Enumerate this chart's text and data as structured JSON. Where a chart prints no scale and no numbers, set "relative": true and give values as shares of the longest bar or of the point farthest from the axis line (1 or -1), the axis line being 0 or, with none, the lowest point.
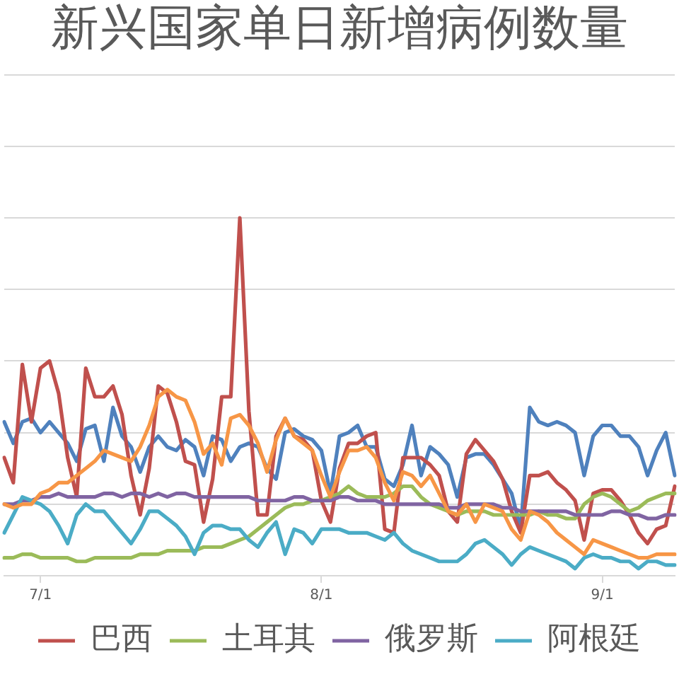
{
  "chart_data": {
    "type": "line",
    "title": "新兴国家单日新增病例数量",
    "relative": true,
    "grid": "y",
    "legend": "bottom",
    "categories": [
      null,
      null,
      null,
      null,
      "7/1",
      null,
      null,
      null,
      null,
      null,
      null,
      null,
      null,
      null,
      null,
      null,
      null,
      null,
      null,
      null,
      null,
      null,
      null,
      null,
      null,
      null,
      null,
      null,
      null,
      null,
      null,
      null,
      null,
      null,
      null,
      "8/1",
      null,
      null,
      null,
      null,
      null,
      null,
      null,
      null,
      null,
      null,
      null,
      null,
      null,
      null,
      null,
      null,
      null,
      null,
      null,
      null,
      null,
      null,
      null,
      null,
      null,
      null,
      null,
      null,
      null,
      null,
      "9/1",
      null,
      null,
      null,
      null,
      null,
      null,
      null,
      null
    ],
    "series": [
      {
        "color": "#4f81bd",
        "values": [
          0.43,
          0.37,
          0.43,
          0.44,
          0.4,
          0.43,
          0.4,
          0.37,
          0.32,
          0.41,
          0.42,
          0.32,
          0.47,
          0.39,
          0.36,
          0.29,
          0.36,
          0.39,
          0.36,
          0.35,
          0.38,
          0.36,
          0.28,
          0.39,
          0.38,
          0.32,
          0.36,
          0.37,
          0.36,
          0.3,
          0.27,
          0.4,
          0.41,
          0.39,
          0.38,
          0.35,
          0.23,
          0.39,
          0.4,
          0.42,
          0.36,
          0.36,
          0.27,
          0.25,
          0.31,
          0.42,
          0.28,
          0.36,
          0.34,
          0.31,
          0.22,
          0.33,
          0.34,
          0.34,
          0.31,
          0.27,
          0.23,
          0.13,
          0.47,
          0.43,
          0.42,
          0.43,
          0.42,
          0.4,
          0.28,
          0.39,
          0.42,
          0.42,
          0.39,
          0.39,
          0.36,
          0.28,
          0.35,
          0.4,
          0.28
        ]
      },
      {
        "name": "巴西",
        "color": "#c0504d",
        "values": [
          0.33,
          0.26,
          0.59,
          0.43,
          0.58,
          0.6,
          0.51,
          0.33,
          0.22,
          0.58,
          0.5,
          0.5,
          0.53,
          0.45,
          0.28,
          0.17,
          0.3,
          0.53,
          0.51,
          0.43,
          0.32,
          0.31,
          0.15,
          0.27,
          0.5,
          0.5,
          1.0,
          0.46,
          0.17,
          0.17,
          0.39,
          0.44,
          0.39,
          0.38,
          0.35,
          0.21,
          0.15,
          0.3,
          0.37,
          0.37,
          0.39,
          0.4,
          0.13,
          0.12,
          0.33,
          0.33,
          0.33,
          0.31,
          0.28,
          0.18,
          0.15,
          0.34,
          0.38,
          0.35,
          0.32,
          0.27,
          0.18,
          0.12,
          0.28,
          0.28,
          0.29,
          0.26,
          0.24,
          0.21,
          0.1,
          0.23,
          0.24,
          0.24,
          0.21,
          0.17,
          0.12,
          0.09,
          0.13,
          0.14,
          0.25
        ]
      },
      {
        "name": "土耳其",
        "color": "#9bbb59",
        "values": [
          0.05,
          0.05,
          0.06,
          0.06,
          0.05,
          0.05,
          0.05,
          0.05,
          0.04,
          0.04,
          0.05,
          0.05,
          0.05,
          0.05,
          0.05,
          0.06,
          0.06,
          0.06,
          0.07,
          0.07,
          0.07,
          0.07,
          0.08,
          0.08,
          0.08,
          0.09,
          0.1,
          0.11,
          0.13,
          0.15,
          0.17,
          0.19,
          0.2,
          0.2,
          0.21,
          0.21,
          0.22,
          0.23,
          0.25,
          0.23,
          0.22,
          0.22,
          0.22,
          0.23,
          0.25,
          0.25,
          0.22,
          0.2,
          0.19,
          0.18,
          0.17,
          0.18,
          0.18,
          0.18,
          0.17,
          0.17,
          0.17,
          0.17,
          0.17,
          0.18,
          0.17,
          0.17,
          0.16,
          0.16,
          0.2,
          0.22,
          0.23,
          0.22,
          0.2,
          0.18,
          0.19,
          0.21,
          0.22,
          0.23,
          0.23
        ]
      },
      {
        "name": "俄罗斯",
        "color": "#8064a2",
        "values": [
          0.2,
          0.2,
          0.21,
          0.21,
          0.22,
          0.22,
          0.23,
          0.22,
          0.22,
          0.22,
          0.22,
          0.23,
          0.23,
          0.22,
          0.23,
          0.23,
          0.22,
          0.23,
          0.22,
          0.23,
          0.23,
          0.22,
          0.22,
          0.22,
          0.22,
          0.22,
          0.22,
          0.22,
          0.21,
          0.21,
          0.21,
          0.21,
          0.22,
          0.22,
          0.21,
          0.21,
          0.21,
          0.22,
          0.22,
          0.21,
          0.21,
          0.21,
          0.2,
          0.2,
          0.2,
          0.2,
          0.2,
          0.2,
          0.2,
          0.19,
          0.19,
          0.2,
          0.2,
          0.2,
          0.2,
          0.19,
          0.19,
          0.18,
          0.18,
          0.18,
          0.18,
          0.18,
          0.18,
          0.17,
          0.17,
          0.17,
          0.17,
          0.18,
          0.18,
          0.17,
          0.17,
          0.16,
          0.16,
          0.17,
          0.17
        ]
      },
      {
        "name": "阿根廷",
        "color": "#4bacc6",
        "values": [
          0.12,
          0.17,
          0.22,
          0.21,
          0.2,
          0.18,
          0.14,
          0.09,
          0.17,
          0.2,
          0.18,
          0.18,
          0.15,
          0.12,
          0.09,
          0.13,
          0.18,
          0.18,
          0.16,
          0.14,
          0.11,
          0.06,
          0.12,
          0.14,
          0.14,
          0.13,
          0.13,
          0.1,
          0.08,
          0.12,
          0.15,
          0.06,
          0.13,
          0.12,
          0.09,
          0.13,
          0.13,
          0.13,
          0.12,
          0.12,
          0.12,
          0.11,
          0.1,
          0.12,
          0.09,
          0.07,
          0.06,
          0.05,
          0.04,
          0.04,
          0.04,
          0.06,
          0.09,
          0.1,
          0.08,
          0.06,
          0.03,
          0.06,
          0.08,
          0.07,
          0.06,
          0.05,
          0.04,
          0.02,
          0.05,
          0.06,
          0.05,
          0.05,
          0.04,
          0.04,
          0.02,
          0.04,
          0.04,
          0.03,
          0.03
        ]
      },
      {
        "color": "#f79646",
        "values": [
          0.2,
          0.19,
          0.2,
          0.2,
          0.23,
          0.24,
          0.26,
          0.26,
          0.28,
          0.3,
          0.32,
          0.35,
          0.34,
          0.33,
          0.32,
          0.36,
          0.42,
          0.5,
          0.52,
          0.5,
          0.49,
          0.43,
          0.34,
          0.37,
          0.31,
          0.44,
          0.45,
          0.42,
          0.37,
          0.29,
          0.38,
          0.44,
          0.39,
          0.37,
          0.35,
          0.28,
          0.22,
          0.29,
          0.35,
          0.35,
          0.36,
          0.33,
          0.26,
          0.21,
          0.29,
          0.28,
          0.25,
          0.28,
          0.23,
          0.18,
          0.17,
          0.2,
          0.15,
          0.2,
          0.19,
          0.18,
          0.13,
          0.1,
          0.18,
          0.17,
          0.15,
          0.12,
          0.1,
          0.08,
          0.06,
          0.1,
          0.09,
          0.08,
          0.07,
          0.06,
          0.05,
          0.05,
          0.06,
          0.06,
          0.06
        ]
      }
    ]
  }
}
